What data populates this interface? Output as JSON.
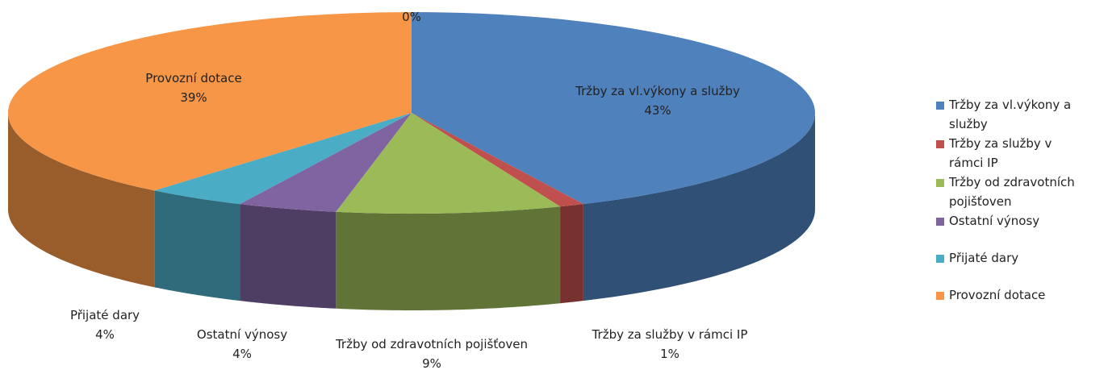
{
  "chart_data": {
    "type": "pie3d",
    "categories": [
      "Tržby za vl.výkony a služby",
      "Tržby za služby v rámci IP",
      "Tržby od zdravotních pojišťoven",
      "Ostatní výnosy",
      "Přijaté dary",
      "Provozní dotace",
      null
    ],
    "values": [
      43,
      1,
      9,
      4,
      4,
      39,
      0
    ],
    "value_labels": [
      "43%",
      "1%",
      "9%",
      "4%",
      "4%",
      "39%",
      "0%"
    ],
    "colors": [
      "#4f81bd",
      "#c0504d",
      "#9bbb59",
      "#8064a2",
      "#4bacc6",
      "#f79646",
      "#7f7f7f"
    ],
    "legend": "right"
  }
}
